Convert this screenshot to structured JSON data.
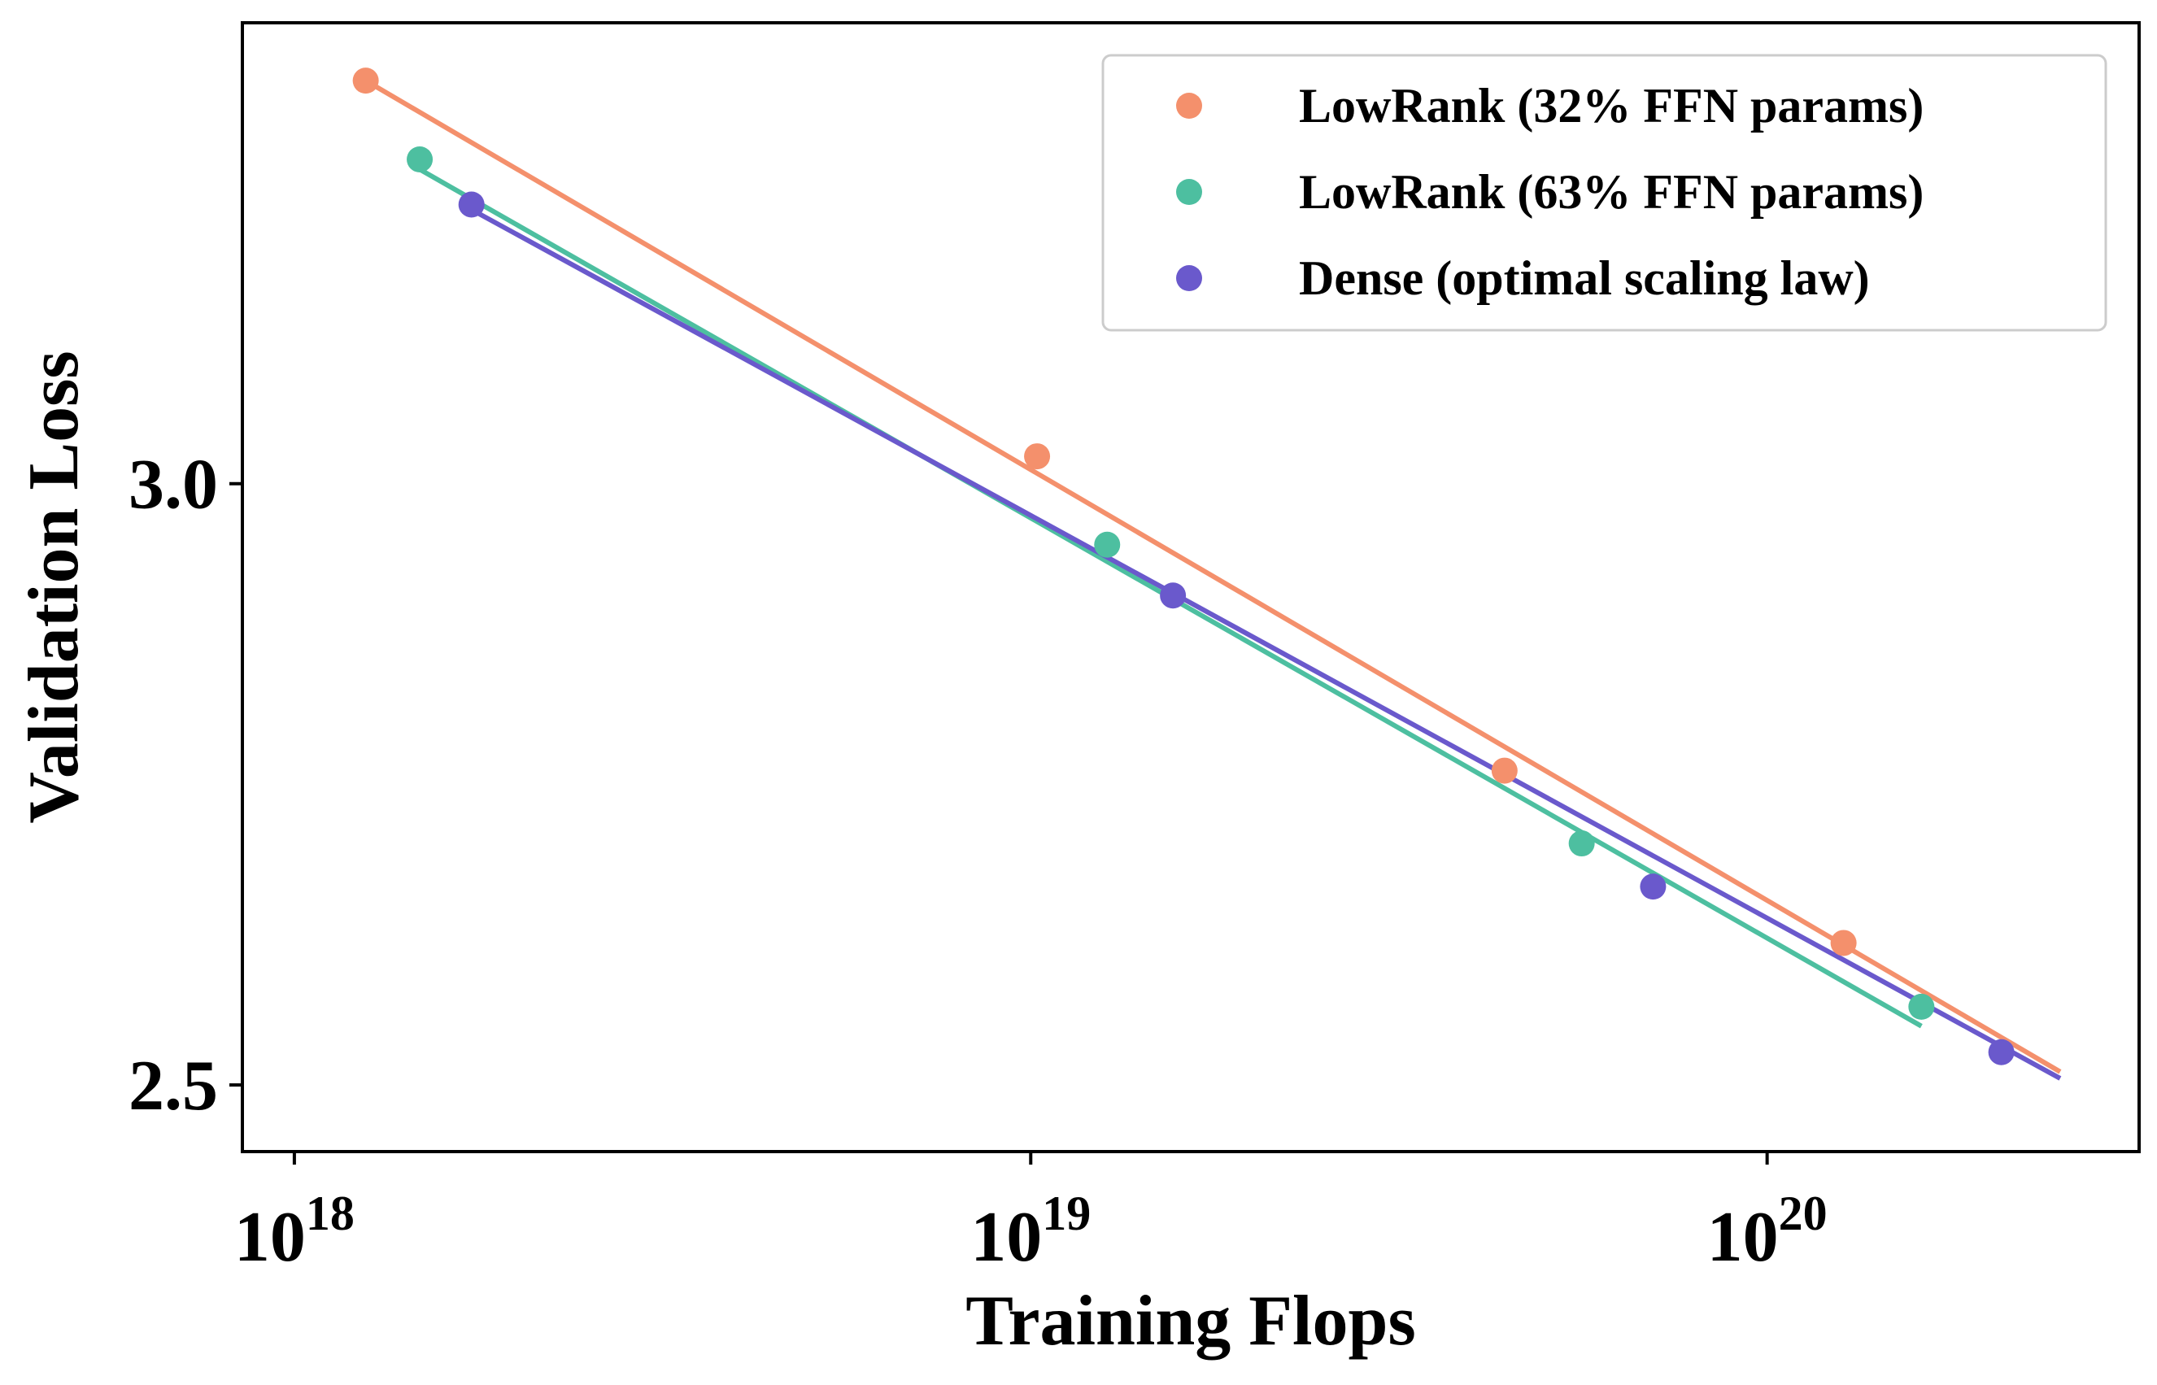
{
  "chart_data": {
    "type": "scatter",
    "title": "",
    "xlabel": "Training Flops",
    "ylabel": "Validation Loss",
    "xscale": "log",
    "yscale": "log",
    "xlim": [
      8.5e+17,
      3.2e+20
    ],
    "ylim": [
      2.45,
      3.45
    ],
    "xticks": [
      {
        "value": 1e+18,
        "base": "10",
        "exp": "18"
      },
      {
        "value": 1e+19,
        "base": "10",
        "exp": "19"
      },
      {
        "value": 1e+20,
        "base": "10",
        "exp": "20"
      }
    ],
    "yticks": [
      {
        "value": 2.5,
        "label": "2.5"
      },
      {
        "value": 3.0,
        "label": "3.0"
      }
    ],
    "grid": false,
    "legend_position": "top-right",
    "series": [
      {
        "name": "LowRank (32% FFN params)",
        "color": "#F4906C",
        "points": [
          [
            1.25e+18,
            3.39
          ],
          [
            1.02e+19,
            3.025
          ],
          [
            4.4e+19,
            2.75
          ],
          [
            1.27e+20,
            2.61
          ]
        ],
        "fit": [
          [
            1.25e+18,
            3.39
          ],
          [
            2.5e+20,
            2.51
          ]
        ]
      },
      {
        "name": "LowRank (63% FFN params)",
        "color": "#4DBFA0",
        "points": [
          [
            1.48e+18,
            3.31
          ],
          [
            1.27e+19,
            2.945
          ],
          [
            5.6e+19,
            2.69
          ],
          [
            1.62e+20,
            2.56
          ]
        ],
        "fit": [
          [
            1.48e+18,
            3.3
          ],
          [
            1.62e+20,
            2.545
          ]
        ]
      },
      {
        "name": "Dense (optimal scaling law)",
        "color": "#6A59CC",
        "points": [
          [
            1.74e+18,
            3.265
          ],
          [
            1.56e+19,
            2.9
          ],
          [
            7e+19,
            2.655
          ],
          [
            2.08e+20,
            2.525
          ]
        ],
        "fit": [
          [
            1.74e+18,
            3.26
          ],
          [
            2.5e+20,
            2.505
          ]
        ]
      }
    ]
  }
}
